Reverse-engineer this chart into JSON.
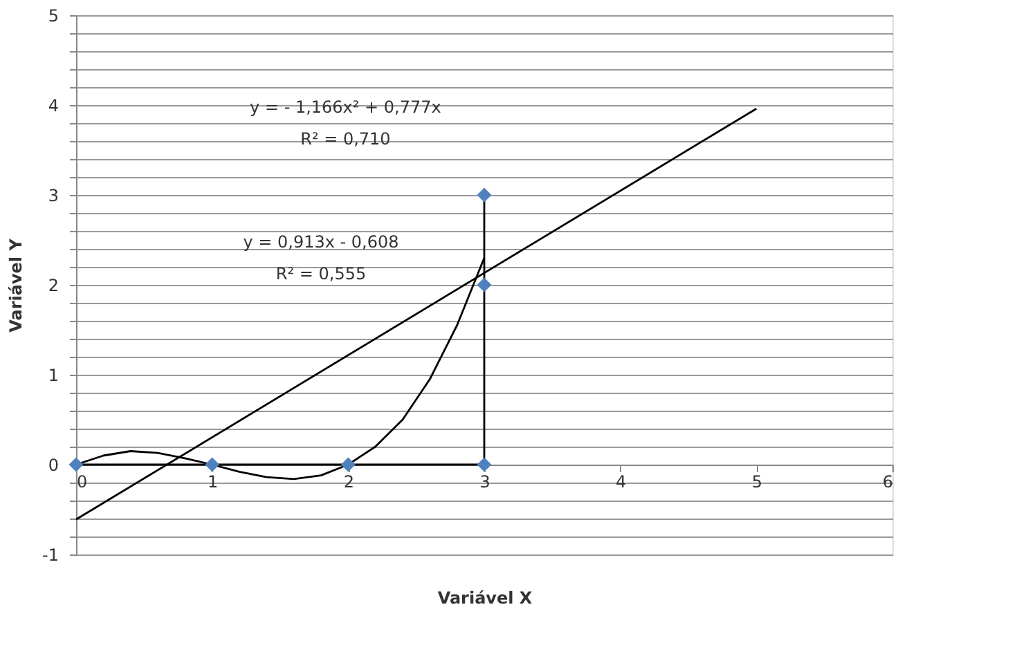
{
  "chart_data": {
    "type": "scatter",
    "xlabel": "Variável X",
    "ylabel": "Variável Y",
    "xlim": [
      0,
      6
    ],
    "xticks": [
      0,
      1,
      2,
      3,
      4,
      5,
      6
    ],
    "ylim": [
      -1,
      5
    ],
    "yticks": [
      -1,
      {
        "value": -0.8,
        "label": null
      },
      {
        "value": -0.6,
        "label": null
      },
      {
        "value": -0.4,
        "label": null
      },
      {
        "value": -0.2,
        "label": null
      },
      0,
      {
        "value": 0.2,
        "label": null
      },
      {
        "value": 0.4,
        "label": null
      },
      {
        "value": 0.6,
        "label": null
      },
      {
        "value": 0.8,
        "label": null
      },
      1,
      {
        "value": 1.2,
        "label": null
      },
      {
        "value": 1.4,
        "label": null
      },
      {
        "value": 1.6,
        "label": null
      },
      {
        "value": 1.8,
        "label": null
      },
      2,
      {
        "value": 2.2,
        "label": null
      },
      {
        "value": 2.4,
        "label": null
      },
      {
        "value": 2.6,
        "label": null
      },
      {
        "value": 2.8,
        "label": null
      },
      3,
      {
        "value": 3.2,
        "label": null
      },
      {
        "value": 3.4,
        "label": null
      },
      {
        "value": 3.6,
        "label": null
      },
      {
        "value": 3.8,
        "label": null
      },
      4,
      {
        "value": 4.2,
        "label": null
      },
      {
        "value": 4.4,
        "label": null
      },
      {
        "value": 4.6,
        "label": null
      },
      {
        "value": 4.8,
        "label": null
      },
      5
    ],
    "grid": "y",
    "series": [
      {
        "type": "line",
        "marker": "none",
        "color": "#000000",
        "x": [
          0,
          1,
          2,
          3,
          3,
          3
        ],
        "values": [
          0,
          0,
          0,
          0,
          2,
          3
        ]
      },
      {
        "type": "line",
        "marker": "none",
        "color": "#000000",
        "x": [
          0,
          0.2,
          0.4,
          0.6,
          0.8,
          1.0,
          1.2,
          1.4,
          1.6,
          1.8,
          2.0,
          2.2,
          2.4,
          2.6,
          2.8,
          3.0
        ],
        "values": [
          0,
          0.1,
          0.15,
          0.13,
          0.07,
          0,
          -0.08,
          -0.14,
          -0.16,
          -0.12,
          0,
          0.2,
          0.5,
          0.95,
          1.55,
          2.3
        ]
      },
      {
        "type": "line",
        "marker": "none",
        "color": "#000000",
        "x": [
          0,
          5
        ],
        "values": [
          -0.61,
          3.96
        ]
      },
      {
        "marker": "diamond",
        "color": "#4f81bd",
        "x": [
          0,
          1,
          2,
          3,
          3,
          3
        ],
        "values": [
          0,
          0,
          0,
          0,
          2,
          3
        ]
      }
    ],
    "annotations": [
      "y =  - 1,166x² + 0,777x",
      "R² = 0,710",
      "y = 0,913x - 0,608",
      "R² = 0,555"
    ]
  }
}
